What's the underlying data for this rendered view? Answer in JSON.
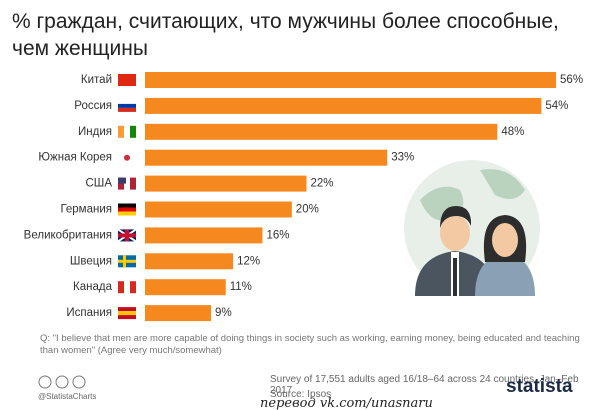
{
  "chart_data": {
    "type": "bar",
    "orientation": "horizontal",
    "title": "% граждан, считающих, что мужчины более способные, чем женщины",
    "categories": [
      "Китай",
      "Россия",
      "Индия",
      "Южная Корея",
      "США",
      "Германия",
      "Великобритания",
      "Швеция",
      "Канада",
      "Испания"
    ],
    "values": [
      56,
      54,
      48,
      33,
      22,
      20,
      16,
      12,
      11,
      9
    ],
    "value_labels": [
      "56%",
      "54%",
      "48%",
      "33%",
      "22%",
      "20%",
      "16%",
      "12%",
      "11%",
      "9%"
    ],
    "color": "#f5891f",
    "note": "Q: \"I believe that men are more capable of doing things in society such as working, earning money, being educated and teaching than women\" (Agree very much/somewhat)",
    "survey": "Survey of 17,551 adults aged 16/18–64 across 24 countries, Jan–Feb 2017",
    "source": "Source: Ipsos",
    "handle": "@StatistaCharts",
    "brand": "statista",
    "watermark": "перевод vk.com/unasnaru"
  }
}
